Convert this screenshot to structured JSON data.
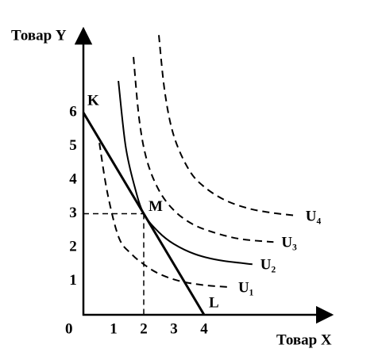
{
  "chart_data": {
    "type": "line",
    "y_label": "Товар Y",
    "x_label": "Товар X",
    "origin_label": "0",
    "xlim": [
      0,
      8.2
    ],
    "ylim": [
      0,
      8.4
    ],
    "xticks": [
      1,
      2,
      3,
      4
    ],
    "yticks": [
      1,
      2,
      3,
      4,
      5,
      6
    ],
    "color": "#000000",
    "series": [
      {
        "x": [
          0,
          4
        ],
        "values": [
          6,
          0
        ],
        "dashed": false,
        "width": 3
      },
      {
        "name": "U₁",
        "x": [
          0.53,
          0.8,
          1.18,
          1.6,
          2.0,
          2.5,
          3.2,
          4.0,
          4.87
        ],
        "values": [
          5.1,
          3.6,
          2.28,
          1.8,
          1.5,
          1.22,
          1.0,
          0.88,
          0.82
        ],
        "dashed": true,
        "width": 2
      },
      {
        "name": "U₂",
        "x": [
          1.16,
          1.4,
          1.7,
          2.0,
          2.5,
          3.0,
          3.7,
          4.5,
          5.6
        ],
        "values": [
          6.94,
          5.0,
          3.8,
          3.0,
          2.45,
          2.1,
          1.8,
          1.62,
          1.5
        ],
        "dashed": false,
        "width": 2
      },
      {
        "name": "U₃",
        "x": [
          1.66,
          1.85,
          2.1,
          2.5,
          3.0,
          3.6,
          4.3,
          5.2,
          6.3
        ],
        "values": [
          7.65,
          5.8,
          4.6,
          3.7,
          3.1,
          2.7,
          2.45,
          2.25,
          2.16
        ],
        "dashed": true,
        "width": 2
      },
      {
        "name": "U₄",
        "x": [
          2.5,
          2.7,
          3.0,
          3.5,
          4.0,
          4.7,
          5.5,
          6.3,
          7.1
        ],
        "values": [
          8.3,
          6.6,
          5.3,
          4.3,
          3.8,
          3.4,
          3.15,
          3.02,
          2.94
        ],
        "dashed": true,
        "width": 2
      }
    ],
    "points": [
      {
        "label": "K",
        "x": 0,
        "y": 6
      },
      {
        "label": "M",
        "x": 2,
        "y": 3
      },
      {
        "label": "L",
        "x": 4,
        "y": 0
      }
    ],
    "guides": true
  }
}
